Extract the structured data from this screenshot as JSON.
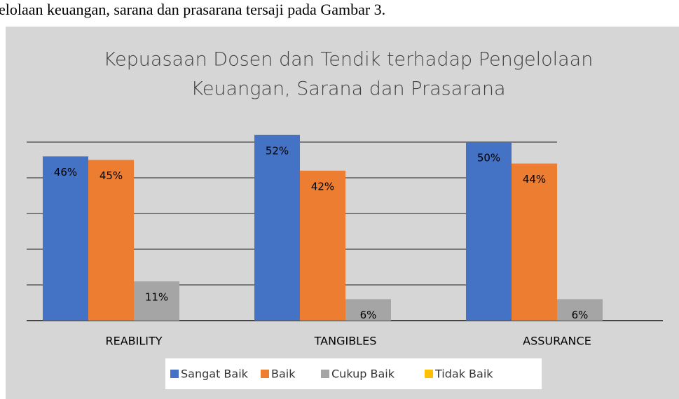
{
  "caption_text": "elolaan keuangan, sarana dan prasarana tersaji pada Gambar 3.",
  "chart_data": {
    "type": "bar",
    "title": [
      "Kepuasaan Dosen dan Tendik terhadap Pengelolaan",
      "Keuangan, Sarana dan Prasarana"
    ],
    "categories": [
      "REABILITY",
      "TANGIBLES",
      "ASSURANCE"
    ],
    "series": [
      {
        "name": "Sangat Baik",
        "color": "#4472c4",
        "values": [
          46,
          52,
          50
        ],
        "value_labels": [
          "46%",
          "52%",
          "50%"
        ]
      },
      {
        "name": "Baik",
        "color": "#ed7d31",
        "values": [
          45,
          42,
          44
        ],
        "value_labels": [
          "45%",
          "42%",
          "44%"
        ]
      },
      {
        "name": "Cukup Baik",
        "color": "#a5a5a5",
        "values": [
          11,
          6,
          6
        ],
        "value_labels": [
          "11%",
          "6%",
          "6%"
        ]
      },
      {
        "name": "Tidak Baik",
        "color": "#ffc000",
        "values": [
          0,
          0,
          0
        ]
      }
    ],
    "ylim": [
      0,
      60
    ],
    "yticks": [
      0,
      10,
      20,
      30,
      40,
      50
    ],
    "grid": true,
    "legend": "bottom"
  }
}
